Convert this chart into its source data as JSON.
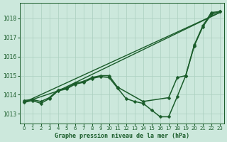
{
  "title": "Graphe pression niveau de la mer (hPa)",
  "background_color": "#cce8dc",
  "grid_color": "#aacfbf",
  "line_color": "#1a5c2a",
  "xlim": [
    -0.5,
    23.5
  ],
  "ylim": [
    1012.5,
    1018.8
  ],
  "yticks": [
    1013,
    1014,
    1015,
    1016,
    1017,
    1018
  ],
  "xticks": [
    0,
    1,
    2,
    3,
    4,
    5,
    6,
    7,
    8,
    9,
    10,
    11,
    12,
    13,
    14,
    15,
    16,
    17,
    18,
    19,
    20,
    21,
    22,
    23
  ],
  "series": [
    {
      "x": [
        0,
        23
      ],
      "y": [
        1013.6,
        1018.3
      ],
      "marker": false,
      "markersize": 0,
      "linewidth": 1.0
    },
    {
      "x": [
        0,
        4,
        23
      ],
      "y": [
        1013.6,
        1014.2,
        1018.3
      ],
      "marker": false,
      "markersize": 0,
      "linewidth": 1.0
    },
    {
      "x": [
        0,
        1,
        2,
        3,
        4,
        5,
        6,
        7,
        8,
        9,
        10,
        11,
        12,
        13,
        14,
        15,
        16,
        17,
        18,
        19,
        20,
        21,
        22,
        23
      ],
      "y": [
        1013.6,
        1013.7,
        1013.55,
        1013.8,
        1014.2,
        1014.3,
        1014.55,
        1014.65,
        1014.85,
        1014.95,
        1014.9,
        1014.35,
        1013.8,
        1013.65,
        1013.55,
        1013.2,
        1012.85,
        1012.85,
        1013.9,
        1015.0,
        1016.55,
        1017.55,
        1018.2,
        1018.35
      ],
      "marker": true,
      "markersize": 2.5,
      "linewidth": 1.1
    },
    {
      "x": [
        0,
        1,
        2,
        3,
        4,
        5,
        6,
        7,
        8,
        9,
        10,
        11,
        14,
        17,
        18,
        19,
        20,
        21,
        22,
        23
      ],
      "y": [
        1013.7,
        1013.75,
        1013.65,
        1013.85,
        1014.25,
        1014.35,
        1014.6,
        1014.7,
        1014.9,
        1015.0,
        1015.0,
        1014.4,
        1013.65,
        1013.85,
        1014.9,
        1015.0,
        1016.6,
        1017.6,
        1018.3,
        1018.35
      ],
      "marker": true,
      "markersize": 2.5,
      "linewidth": 1.1
    }
  ]
}
